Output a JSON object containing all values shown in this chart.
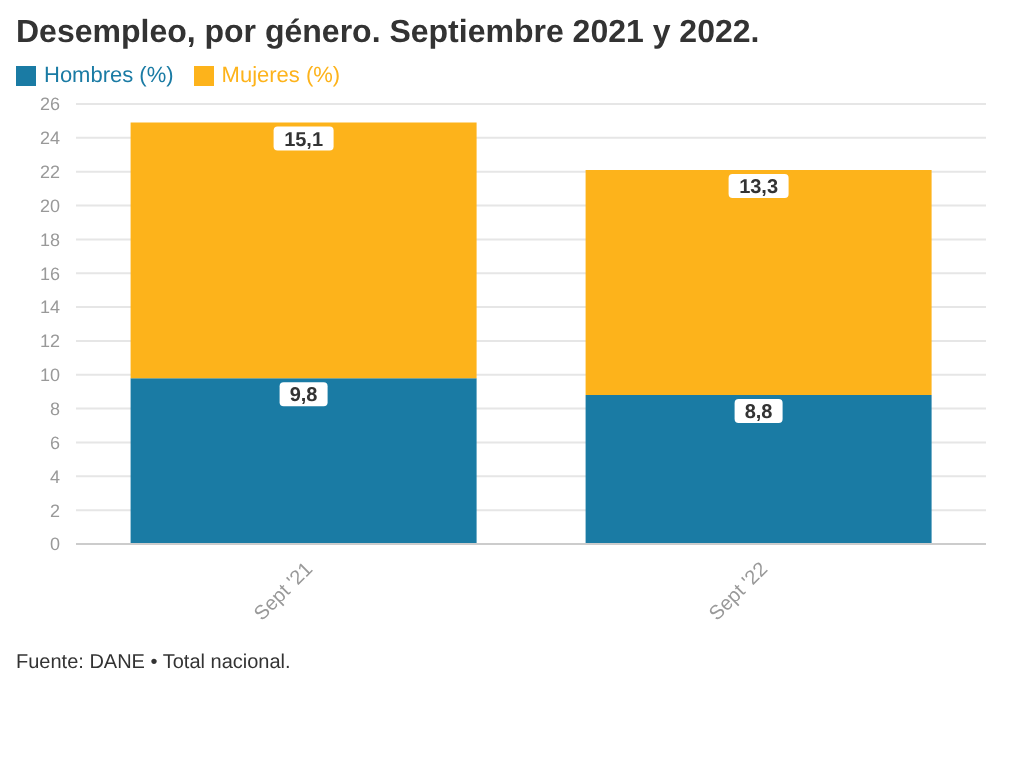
{
  "chart_data": {
    "type": "bar",
    "title": "Desempleo, por género. Septiembre 2021 y 2022.",
    "categories": [
      "Sept '21",
      "Sept '22"
    ],
    "series": [
      {
        "name": "Hombres (%)",
        "color": "#1a7ba4",
        "values": [
          9.8,
          8.8
        ],
        "value_labels": [
          "9,8",
          "8,8"
        ]
      },
      {
        "name": "Mujeres (%)",
        "color": "#fdb31b",
        "values": [
          15.1,
          13.3
        ],
        "value_labels": [
          "15,1",
          "13,3"
        ]
      }
    ],
    "stacked": true,
    "ylim": [
      0,
      26
    ],
    "yticks": [
      0,
      2,
      4,
      6,
      8,
      10,
      12,
      14,
      16,
      18,
      20,
      22,
      24,
      26
    ],
    "grid": "y",
    "legend": "top left",
    "annotations": [
      "Fuente: DANE • Total nacional."
    ]
  }
}
